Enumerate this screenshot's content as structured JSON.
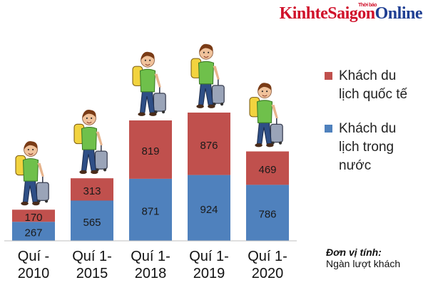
{
  "logo": {
    "part1": "KinhteSaigon",
    "part2": "Online",
    "tagline": "Thời báo"
  },
  "chart_data": {
    "type": "bar",
    "stacked": true,
    "categories": [
      "Quí - 2010",
      "Quí 1- 2015",
      "Quí 1- 2018",
      "Quí 1- 2019",
      "Quí 1- 2020"
    ],
    "category_lines": [
      [
        "Quí -",
        "2010"
      ],
      [
        "Quí 1-",
        "2015"
      ],
      [
        "Quí 1-",
        "2018"
      ],
      [
        "Quí 1-",
        "2019"
      ],
      [
        "Quí 1-",
        "2020"
      ]
    ],
    "series": [
      {
        "name": "Khách du lịch trong nước",
        "legend_lines": [
          "Khách du",
          "lịch trong",
          "nước"
        ],
        "color": "#4f81bd",
        "values": [
          267,
          565,
          871,
          924,
          786
        ]
      },
      {
        "name": "Khách du lịch quốc tế",
        "legend_lines": [
          "Khách du",
          "lịch quốc tế"
        ],
        "color": "#c0504d",
        "values": [
          170,
          313,
          819,
          876,
          469
        ]
      }
    ],
    "ylim": [
      0,
      2000
    ],
    "grid": false,
    "legend_position": "right",
    "illustration": "traveler with backpack and suitcase above each bar"
  },
  "unit": {
    "title": "Đơn vị tính:",
    "value": "Ngàn lượt khách"
  }
}
